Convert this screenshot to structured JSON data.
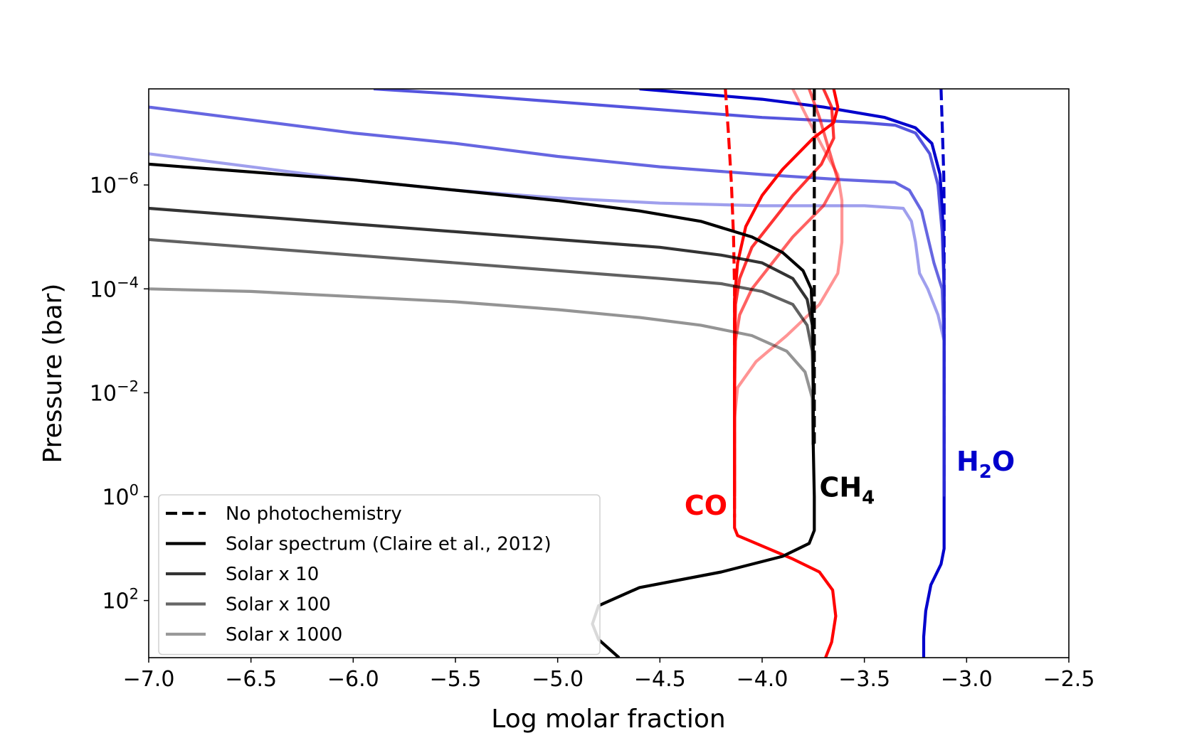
{
  "chart_data": {
    "type": "line",
    "title": "",
    "xlabel": "Log molar fraction",
    "ylabel": "Pressure (bar)",
    "xlim": [
      -7.0,
      -2.5
    ],
    "ylim_log10": [
      -7.85,
      3.1
    ],
    "y_inverted": true,
    "y_scale": "log",
    "x_ticks": [
      -7.0,
      -6.5,
      -6.0,
      -5.5,
      -5.0,
      -4.5,
      -4.0,
      -3.5,
      -3.0,
      -2.5
    ],
    "x_tick_labels": [
      "−7.0",
      "−6.5",
      "−6.0",
      "−5.5",
      "−5.0",
      "−4.5",
      "−4.0",
      "−3.5",
      "−3.0",
      "−2.5"
    ],
    "y_ticks": [
      {
        "log": -6,
        "base": "10",
        "exp": "−6"
      },
      {
        "log": -4,
        "base": "10",
        "exp": "−4"
      },
      {
        "log": -2,
        "base": "10",
        "exp": "−2"
      },
      {
        "log": 0,
        "base": "10",
        "exp": "0"
      },
      {
        "log": 2,
        "base": "10",
        "exp": "2"
      }
    ],
    "legend": {
      "position": "lower-left",
      "entries": [
        {
          "label": "No photochemistry",
          "color": "#000000",
          "dashed": true
        },
        {
          "label": "Solar spectrum (Claire et al., 2012)",
          "color": "#000000",
          "dashed": false
        },
        {
          "label": "Solar x 10",
          "color": "#333333",
          "dashed": false
        },
        {
          "label": "Solar x 100",
          "color": "#666666",
          "dashed": false
        },
        {
          "label": "Solar x 1000",
          "color": "#999999",
          "dashed": false
        }
      ]
    },
    "annotations": [
      {
        "id": "co",
        "text": "CO",
        "color": "#ff0000",
        "x": -4.38,
        "logp": 0.35
      },
      {
        "id": "ch4",
        "text": "CH",
        "sub": "4",
        "color": "#000000",
        "x": -3.72,
        "logp": 0.0
      },
      {
        "id": "h2o",
        "text": "H",
        "sub": "2",
        "tail": "O",
        "color": "#0000cc",
        "x": -3.05,
        "logp": -0.5
      }
    ],
    "series": [
      {
        "name": "H2O no photochemistry",
        "species": "H2O",
        "color": "#0000cc",
        "opacity": 1.0,
        "dashed": true,
        "points": [
          [
            -3.125,
            -7.85
          ],
          [
            -3.118,
            -7.0
          ],
          [
            -3.112,
            -6.2
          ],
          [
            -3.11,
            -5.6
          ],
          [
            -3.11,
            -4.0
          ],
          [
            -3.11,
            -2.0
          ],
          [
            -3.11,
            0.0
          ]
        ]
      },
      {
        "name": "H2O solar",
        "species": "H2O",
        "color": "#0000cc",
        "opacity": 1.0,
        "dashed": false,
        "points": [
          [
            -4.6,
            -7.85
          ],
          [
            -4.0,
            -7.65
          ],
          [
            -3.7,
            -7.5
          ],
          [
            -3.4,
            -7.3
          ],
          [
            -3.25,
            -7.1
          ],
          [
            -3.17,
            -6.8
          ],
          [
            -3.13,
            -6.2
          ],
          [
            -3.115,
            -5.2
          ],
          [
            -3.11,
            -4.0
          ],
          [
            -3.11,
            -2.0
          ],
          [
            -3.11,
            0.0
          ],
          [
            -3.11,
            1.0
          ],
          [
            -3.125,
            1.3
          ],
          [
            -3.175,
            1.7
          ],
          [
            -3.2,
            2.2
          ],
          [
            -3.21,
            2.7
          ],
          [
            -3.21,
            3.1
          ]
        ]
      },
      {
        "name": "H2O solar x10",
        "species": "H2O",
        "color": "#2b2bd6",
        "opacity": 0.8,
        "dashed": false,
        "points": [
          [
            -5.9,
            -7.85
          ],
          [
            -5.5,
            -7.75
          ],
          [
            -5.0,
            -7.6
          ],
          [
            -4.5,
            -7.45
          ],
          [
            -4.0,
            -7.3
          ],
          [
            -3.5,
            -7.2
          ],
          [
            -3.35,
            -7.15
          ],
          [
            -3.25,
            -7.0
          ],
          [
            -3.18,
            -6.6
          ],
          [
            -3.14,
            -6.0
          ],
          [
            -3.12,
            -5.1
          ],
          [
            -3.11,
            -4.0
          ],
          [
            -3.11,
            -2.0
          ],
          [
            -3.11,
            0.0
          ]
        ]
      },
      {
        "name": "H2O solar x100",
        "species": "H2O",
        "color": "#2b2bd6",
        "opacity": 0.72,
        "dashed": false,
        "points": [
          [
            -7.0,
            -7.5
          ],
          [
            -6.5,
            -7.25
          ],
          [
            -6.0,
            -7.0
          ],
          [
            -5.5,
            -6.8
          ],
          [
            -5.0,
            -6.55
          ],
          [
            -4.5,
            -6.35
          ],
          [
            -4.0,
            -6.2
          ],
          [
            -3.6,
            -6.1
          ],
          [
            -3.35,
            -6.05
          ],
          [
            -3.28,
            -5.9
          ],
          [
            -3.22,
            -5.5
          ],
          [
            -3.19,
            -5.0
          ],
          [
            -3.16,
            -4.5
          ],
          [
            -3.12,
            -4.0
          ],
          [
            -3.11,
            -3.0
          ],
          [
            -3.11,
            0.0
          ]
        ]
      },
      {
        "name": "H2O solar x1000",
        "species": "H2O",
        "color": "#2b2bd6",
        "opacity": 0.45,
        "dashed": false,
        "points": [
          [
            -7.0,
            -6.6
          ],
          [
            -6.5,
            -6.35
          ],
          [
            -6.0,
            -6.1
          ],
          [
            -5.5,
            -5.9
          ],
          [
            -5.0,
            -5.75
          ],
          [
            -4.5,
            -5.65
          ],
          [
            -4.0,
            -5.6
          ],
          [
            -3.5,
            -5.6
          ],
          [
            -3.31,
            -5.55
          ],
          [
            -3.27,
            -5.3
          ],
          [
            -3.25,
            -4.9
          ],
          [
            -3.23,
            -4.3
          ],
          [
            -3.19,
            -4.0
          ],
          [
            -3.14,
            -3.5
          ],
          [
            -3.11,
            -3.0
          ],
          [
            -3.11,
            0.0
          ]
        ]
      },
      {
        "name": "CO no photochemistry",
        "species": "CO",
        "color": "#ff0000",
        "opacity": 1.0,
        "dashed": true,
        "points": [
          [
            -4.18,
            -7.85
          ],
          [
            -4.165,
            -7.0
          ],
          [
            -4.15,
            -6.0
          ],
          [
            -4.14,
            -5.0
          ],
          [
            -4.135,
            -4.0
          ],
          [
            -4.135,
            -2.0
          ],
          [
            -4.135,
            0.0
          ],
          [
            -4.135,
            0.4
          ]
        ]
      },
      {
        "name": "CO solar",
        "species": "CO",
        "color": "#ff0000",
        "opacity": 1.0,
        "dashed": false,
        "points": [
          [
            -3.65,
            -7.85
          ],
          [
            -3.63,
            -7.5
          ],
          [
            -3.65,
            -7.2
          ],
          [
            -3.75,
            -6.9
          ],
          [
            -3.9,
            -6.3
          ],
          [
            -4.0,
            -5.8
          ],
          [
            -4.08,
            -5.2
          ],
          [
            -4.12,
            -4.5
          ],
          [
            -4.135,
            -3.8
          ],
          [
            -4.135,
            -2.0
          ],
          [
            -4.135,
            0.0
          ],
          [
            -4.135,
            0.6
          ],
          [
            -4.12,
            0.75
          ],
          [
            -4.0,
            0.95
          ],
          [
            -3.85,
            1.2
          ],
          [
            -3.72,
            1.45
          ],
          [
            -3.655,
            1.8
          ],
          [
            -3.64,
            2.3
          ],
          [
            -3.66,
            2.8
          ],
          [
            -3.69,
            3.1
          ]
        ]
      },
      {
        "name": "CO solar x10",
        "species": "CO",
        "color": "#ff0000",
        "opacity": 0.8,
        "dashed": false,
        "points": [
          [
            -3.7,
            -7.85
          ],
          [
            -3.66,
            -7.5
          ],
          [
            -3.65,
            -6.9
          ],
          [
            -3.71,
            -6.4
          ],
          [
            -3.85,
            -5.8
          ],
          [
            -3.95,
            -5.3
          ],
          [
            -4.05,
            -4.8
          ],
          [
            -4.11,
            -4.2
          ],
          [
            -4.13,
            -3.7
          ],
          [
            -4.135,
            -2.5
          ],
          [
            -4.135,
            0.0
          ]
        ]
      },
      {
        "name": "CO solar x100",
        "species": "CO",
        "color": "#ff0000",
        "opacity": 0.62,
        "dashed": false,
        "points": [
          [
            -3.77,
            -7.85
          ],
          [
            -3.72,
            -7.3
          ],
          [
            -3.66,
            -6.5
          ],
          [
            -3.63,
            -6.1
          ],
          [
            -3.7,
            -5.6
          ],
          [
            -3.85,
            -5.0
          ],
          [
            -3.95,
            -4.5
          ],
          [
            -4.05,
            -4.0
          ],
          [
            -4.11,
            -3.5
          ],
          [
            -4.13,
            -3.0
          ],
          [
            -4.135,
            -2.0
          ],
          [
            -4.135,
            0.0
          ]
        ]
      },
      {
        "name": "CO solar x1000",
        "species": "CO",
        "color": "#ff0000",
        "opacity": 0.42,
        "dashed": false,
        "points": [
          [
            -3.85,
            -7.85
          ],
          [
            -3.78,
            -7.3
          ],
          [
            -3.7,
            -6.7
          ],
          [
            -3.63,
            -6.2
          ],
          [
            -3.61,
            -5.7
          ],
          [
            -3.61,
            -4.9
          ],
          [
            -3.63,
            -4.3
          ],
          [
            -3.72,
            -3.7
          ],
          [
            -3.88,
            -3.1
          ],
          [
            -4.03,
            -2.6
          ],
          [
            -4.12,
            -2.1
          ],
          [
            -4.135,
            -1.5
          ],
          [
            -4.135,
            0.0
          ]
        ]
      },
      {
        "name": "CH4 no photochemistry",
        "species": "CH4",
        "color": "#000000",
        "opacity": 1.0,
        "dashed": true,
        "points": [
          [
            -3.745,
            -7.85
          ],
          [
            -3.745,
            -6.0
          ],
          [
            -3.745,
            -4.0
          ],
          [
            -3.745,
            -2.0
          ],
          [
            -3.745,
            -1.0
          ]
        ]
      },
      {
        "name": "CH4 solar",
        "species": "CH4",
        "color": "#000000",
        "opacity": 1.0,
        "dashed": false,
        "points": [
          [
            -7.0,
            -6.4
          ],
          [
            -6.5,
            -6.25
          ],
          [
            -6.0,
            -6.1
          ],
          [
            -5.5,
            -5.9
          ],
          [
            -5.0,
            -5.7
          ],
          [
            -4.6,
            -5.5
          ],
          [
            -4.3,
            -5.3
          ],
          [
            -4.05,
            -5.0
          ],
          [
            -3.9,
            -4.7
          ],
          [
            -3.8,
            -4.35
          ],
          [
            -3.76,
            -4.0
          ],
          [
            -3.75,
            -3.0
          ],
          [
            -3.75,
            -1.0
          ],
          [
            -3.745,
            0.0
          ],
          [
            -3.745,
            0.65
          ],
          [
            -3.77,
            0.9
          ],
          [
            -3.9,
            1.15
          ],
          [
            -4.2,
            1.45
          ],
          [
            -4.6,
            1.75
          ],
          [
            -4.8,
            2.1
          ],
          [
            -4.83,
            2.45
          ],
          [
            -4.8,
            2.75
          ],
          [
            -4.7,
            3.1
          ]
        ]
      },
      {
        "name": "CH4 solar x10",
        "species": "CH4",
        "color": "#000000",
        "opacity": 0.8,
        "dashed": false,
        "points": [
          [
            -7.0,
            -5.55
          ],
          [
            -6.5,
            -5.4
          ],
          [
            -6.0,
            -5.25
          ],
          [
            -5.5,
            -5.1
          ],
          [
            -5.0,
            -4.95
          ],
          [
            -4.5,
            -4.8
          ],
          [
            -4.2,
            -4.65
          ],
          [
            -4.0,
            -4.5
          ],
          [
            -3.85,
            -4.2
          ],
          [
            -3.78,
            -3.8
          ],
          [
            -3.755,
            -3.3
          ],
          [
            -3.75,
            -2.5
          ],
          [
            -3.75,
            -1.0
          ]
        ]
      },
      {
        "name": "CH4 solar x100",
        "species": "CH4",
        "color": "#000000",
        "opacity": 0.62,
        "dashed": false,
        "points": [
          [
            -7.0,
            -4.95
          ],
          [
            -6.5,
            -4.8
          ],
          [
            -6.0,
            -4.65
          ],
          [
            -5.5,
            -4.5
          ],
          [
            -5.0,
            -4.35
          ],
          [
            -4.5,
            -4.2
          ],
          [
            -4.2,
            -4.1
          ],
          [
            -4.0,
            -3.95
          ],
          [
            -3.85,
            -3.7
          ],
          [
            -3.78,
            -3.3
          ],
          [
            -3.755,
            -2.8
          ],
          [
            -3.75,
            -2.0
          ],
          [
            -3.75,
            -1.0
          ]
        ]
      },
      {
        "name": "CH4 solar x1000",
        "species": "CH4",
        "color": "#000000",
        "opacity": 0.42,
        "dashed": false,
        "points": [
          [
            -7.0,
            -4.0
          ],
          [
            -6.5,
            -3.95
          ],
          [
            -6.0,
            -3.85
          ],
          [
            -5.5,
            -3.75
          ],
          [
            -5.0,
            -3.6
          ],
          [
            -4.6,
            -3.45
          ],
          [
            -4.3,
            -3.3
          ],
          [
            -4.05,
            -3.1
          ],
          [
            -3.88,
            -2.8
          ],
          [
            -3.79,
            -2.4
          ],
          [
            -3.755,
            -1.9
          ],
          [
            -3.75,
            -1.0
          ]
        ]
      }
    ]
  }
}
